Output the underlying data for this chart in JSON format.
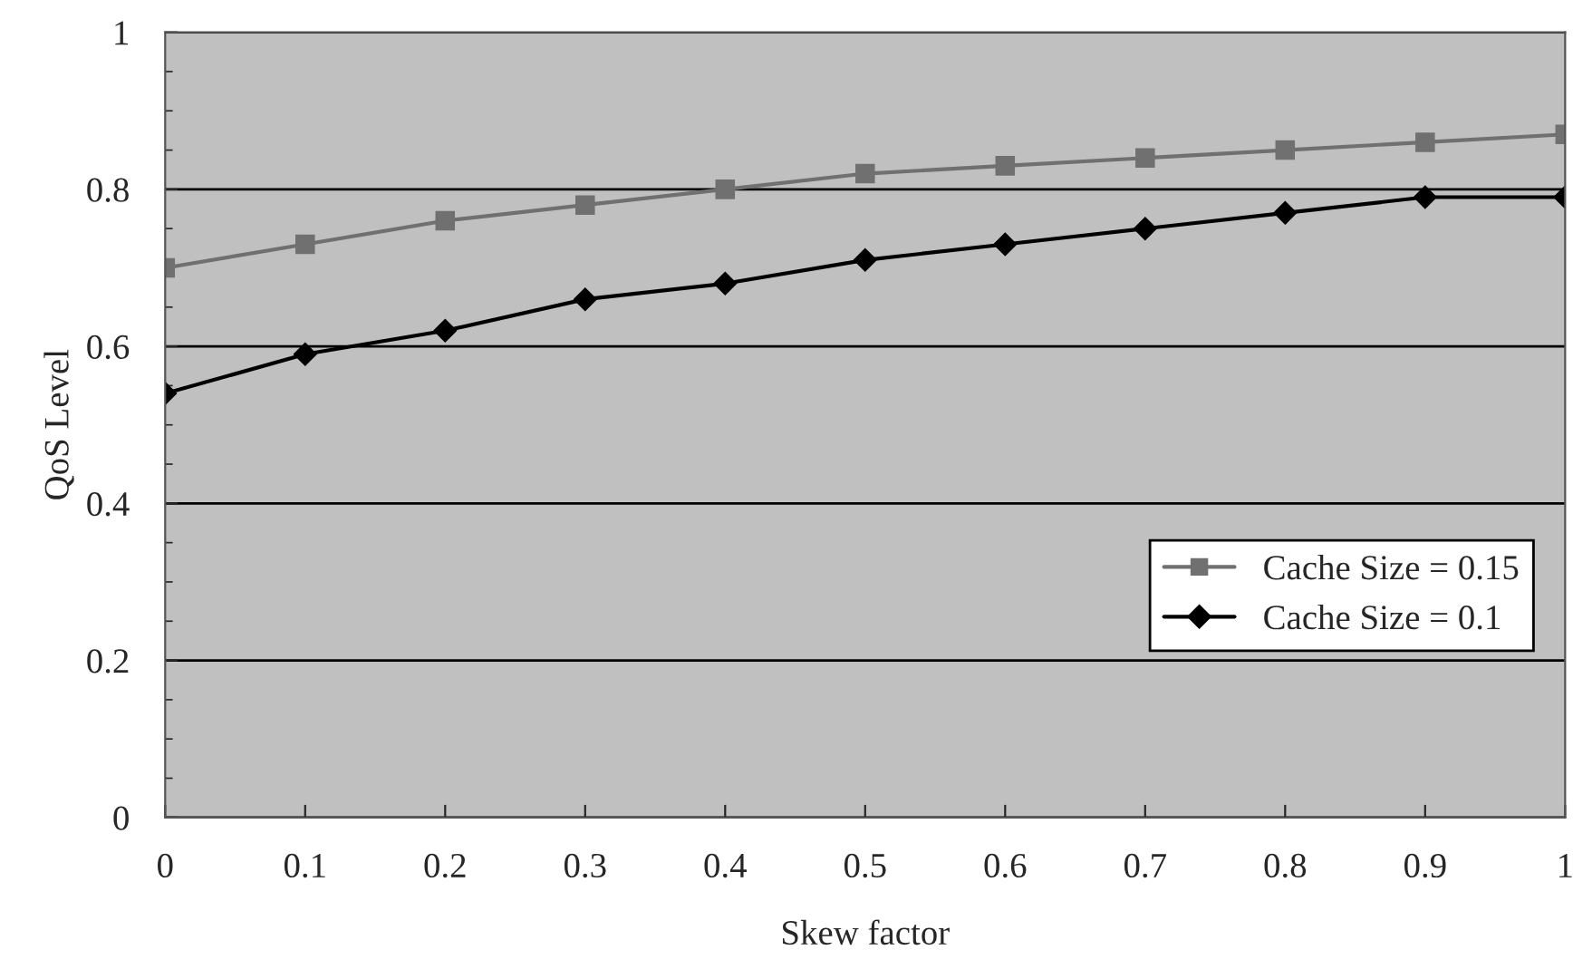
{
  "chart_data": {
    "type": "line",
    "xlabel": "Skew factor",
    "ylabel": "QoS Level",
    "x": [
      0,
      0.1,
      0.2,
      0.3,
      0.4,
      0.5,
      0.6,
      0.7,
      0.8,
      0.9,
      1
    ],
    "series": [
      {
        "name": "Cache Size = 0.15",
        "color": "#707070",
        "marker": "square",
        "values": [
          0.7,
          0.73,
          0.76,
          0.78,
          0.8,
          0.82,
          0.83,
          0.84,
          0.85,
          0.86,
          0.87
        ]
      },
      {
        "name": "Cache Size = 0.1",
        "color": "#000000",
        "marker": "diamond",
        "values": [
          0.54,
          0.59,
          0.62,
          0.66,
          0.68,
          0.71,
          0.73,
          0.75,
          0.77,
          0.79,
          0.79
        ]
      }
    ],
    "xlim": [
      0,
      1
    ],
    "ylim": [
      0,
      1
    ],
    "xticks": [
      0,
      0.1,
      0.2,
      0.3,
      0.4,
      0.5,
      0.6,
      0.7,
      0.8,
      0.9,
      1
    ],
    "yticks": [
      0,
      0.2,
      0.4,
      0.6,
      0.8,
      1
    ],
    "grid": "y",
    "legend": "bottom right",
    "line_style": "solid"
  }
}
